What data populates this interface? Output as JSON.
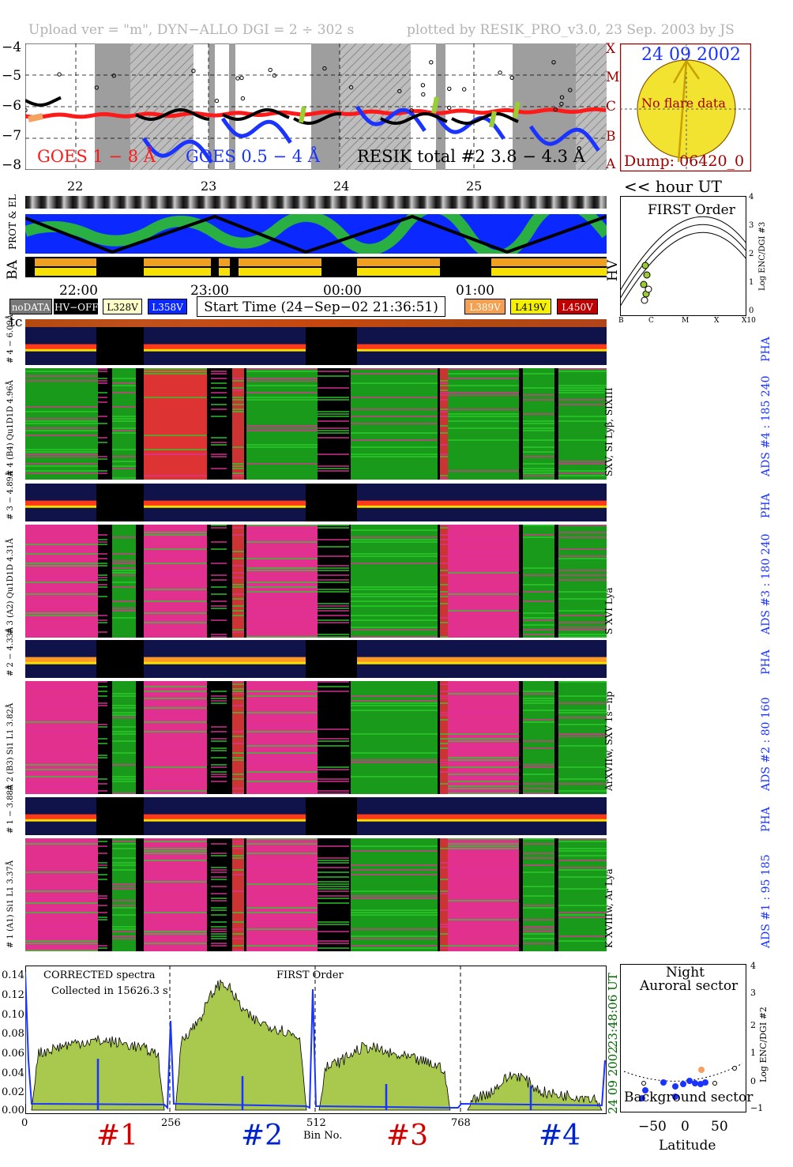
{
  "header": {
    "upload": "Upload ver = \"m\", DYN−ALLO DGI =   2 ÷ 302 s",
    "plotted": "plotted by RESIK_PRO_v3.0, 23 Sep. 2003 by JS"
  },
  "goes": {
    "yticks": [
      "−4",
      "−5",
      "−6",
      "−7",
      "−8"
    ],
    "class_letters": [
      "X",
      "M",
      "C",
      "B",
      "A"
    ],
    "legend_goes18": "GOES 1 − 8 Å",
    "legend_goes054": "GOES 0.5 − 4 Å",
    "legend_resik": "RESIK total #2  3.8 − 4.3 Å",
    "colors": {
      "goes18": "#ff1a1a",
      "goes054": "#1a33ff",
      "black": "#000000",
      "green": "#9acd32",
      "orange": "#f4a460"
    }
  },
  "sun": {
    "date": "24 09 2002",
    "noflare": "No flare data",
    "dump": "Dump: 06420_0",
    "fill": "#f2e330"
  },
  "hours_top": {
    "ticks": [
      "22",
      "23",
      "24",
      "25"
    ],
    "unit_label": "<< hour UT"
  },
  "rows_labels": {
    "prot": "PROT & EL",
    "ba": "BA",
    "hv": "HV"
  },
  "first_order": {
    "title": "FIRST Order",
    "ylabel": "Log ENC/DGI #3",
    "yticks": [
      "4",
      "3",
      "2",
      "1",
      "0"
    ],
    "xticks": [
      "B",
      "C",
      "M",
      "X",
      "X10"
    ]
  },
  "time_axis": {
    "ticks": [
      "22:00",
      "23:00",
      "00:00",
      "01:00"
    ]
  },
  "legend_bar": {
    "nodata": "noDATA",
    "hvoff": "HV−OFF",
    "l328": "L328V",
    "l358": "L358V",
    "start": "Start Time (24−Sep−02 21:36:51)",
    "l389": "L389V",
    "l419": "L419V",
    "l450": "L450V"
  },
  "tc": "tc",
  "channels": [
    {
      "pha_label": "# 4 − 6.09Å",
      "spec_label": "# 4 (B4) Qu1D1D 4.96Å",
      "ads": "ADS #4 :   185 240",
      "lines": "SXV, SI Lyβ, SIXIII"
    },
    {
      "pha_label": "# 3 − 4.89Å",
      "spec_label": "# 3 (A2) Qu1D1D  4.31Å",
      "ads": "ADS #3 :   180 240",
      "lines": "S XVI Lya"
    },
    {
      "pha_label": "# 2 − 4.33Å",
      "spec_label": "# 2 (B3) Si1 L1  3.82Å",
      "ads": "ADS #2 :    80 160",
      "lines": "ArXVIIw, SXV 1s−np"
    },
    {
      "pha_label": "# 1 − 3.88Å",
      "spec_label": "# 1 (A1) Si1 L1  3.37Å",
      "ads": "ADS #1 :    95 185",
      "lines": "K XVIIIw, Ar Lya"
    }
  ],
  "pha": "PHA",
  "spectrum": {
    "annot1": "CORRECTED spectra",
    "annot2": "Collected in 15626.3 s",
    "annot3": "FIRST Order",
    "right1": "23:48:06 UT",
    "right2": "24 09 2002",
    "xlabel": "Bin No.",
    "yticks": [
      "0.14",
      "0.12",
      "0.10",
      "0.08",
      "0.06",
      "0.04",
      "0.02",
      "0.00"
    ],
    "xticks": [
      "0",
      "256",
      "512",
      "768"
    ],
    "section_labels": [
      "#1",
      "#2",
      "#3",
      "#4"
    ],
    "section_colors": [
      "#d40000",
      "#0022cc",
      "#d40000",
      "#0022cc"
    ]
  },
  "night": {
    "title1": "Night",
    "title2": "Auroral sector",
    "bottom": "Background sector",
    "ylabel": "Log ENC/DGI #2",
    "yticks": [
      "4",
      "3",
      "2",
      "1",
      "0",
      "−1"
    ],
    "xticks": [
      "−50",
      "0",
      "50"
    ],
    "xlabel": "Latitude"
  }
}
